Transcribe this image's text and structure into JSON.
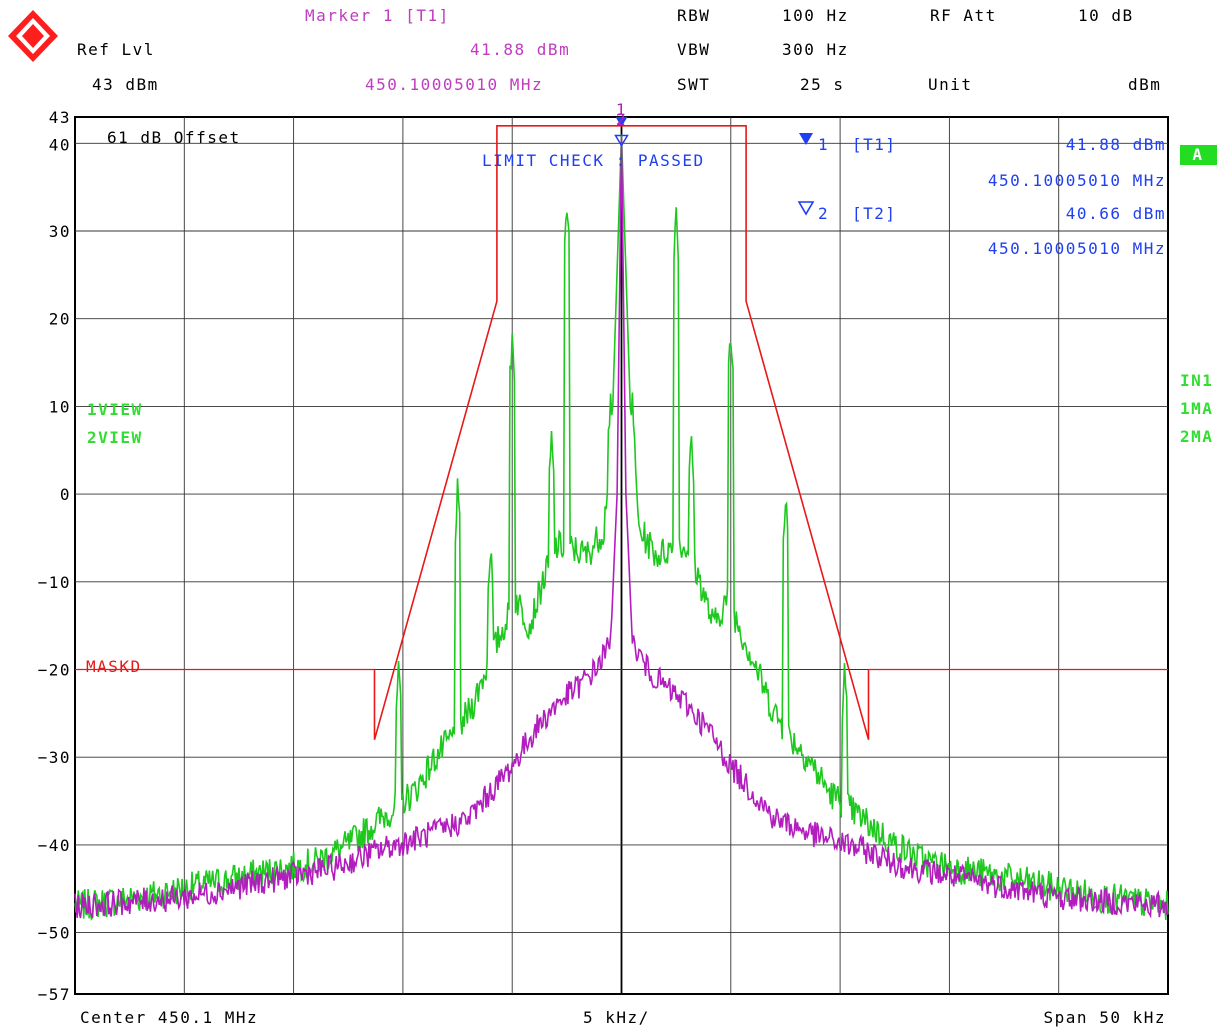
{
  "header": {
    "marker_title": "Marker 1 [T1]",
    "ref_lvl_label": "Ref Lvl",
    "ref_lvl_value": "43 dBm",
    "marker_level": "41.88 dBm",
    "marker_freq": "450.10005010 MHz",
    "rbw_label": "RBW",
    "rbw_value": "100 Hz",
    "vbw_label": "VBW",
    "vbw_value": "300 Hz",
    "swt_label": "SWT",
    "swt_value": "25 s",
    "rf_att_label": "RF Att",
    "rf_att_value": "10 dB",
    "unit_label": "Unit",
    "unit_value": "dBm"
  },
  "overlay": {
    "offset_text": "61 dB Offset",
    "limit_check": "LIMIT CHECK   : PASSED",
    "view1": "1VIEW",
    "view2": "2VIEW",
    "mask_label": "MASKD",
    "trace_badge": "A",
    "right_labels": [
      "IN1",
      "1MA",
      "2MA"
    ],
    "marker1_id": "1",
    "marker1_tag": "[T1]",
    "marker1_level": "41.88 dBm",
    "marker1_freq": "450.10005010 MHz",
    "marker2_id": "2",
    "marker2_tag": "[T2]",
    "marker2_level": "40.66 dBm",
    "marker2_freq": "450.10005010 MHz"
  },
  "footer": {
    "center": "Center 450.1 MHz",
    "per_div": "5 kHz/",
    "span": "Span 50 kHz"
  },
  "colors": {
    "trace1": "#1ec81e",
    "trace2": "#b21ebe",
    "mask": "#e81818",
    "marker_text": "#1f3ff0",
    "header_magenta": "#c03cc0",
    "view_green": "#33dd33",
    "grid": "#000000"
  },
  "chart_data": {
    "type": "line",
    "xlabel": "",
    "ylabel": "",
    "x_unit": "kHz offset from center",
    "xlim": [
      -25,
      25
    ],
    "ylim": [
      -57,
      43
    ],
    "yticks": [
      43,
      40,
      30,
      20,
      10,
      0,
      -10,
      -20,
      -30,
      -40,
      -50,
      -57
    ],
    "grid": true,
    "mask_line": {
      "name": "MASKD",
      "x": [
        -11.3,
        -11.3,
        -5.7,
        -5.7,
        5.7,
        5.7,
        11.3,
        11.3
      ],
      "y": [
        -20,
        -28,
        22,
        42,
        42,
        22,
        -28,
        -20
      ],
      "horizontal_level": -20
    },
    "series": [
      {
        "key": "1VIEW",
        "base": [
          [
            -25,
            -47
          ],
          [
            -22,
            -46
          ],
          [
            -19,
            -44.5
          ],
          [
            -16,
            -43
          ],
          [
            -14,
            -42
          ],
          [
            -12.5,
            -40
          ],
          [
            -11.5,
            -38
          ],
          [
            -10.5,
            -36
          ],
          [
            -9.5,
            -34
          ],
          [
            -8.5,
            -30
          ],
          [
            -7.5,
            -27
          ],
          [
            -6.8,
            -24
          ],
          [
            -6.2,
            -20
          ],
          [
            -5.2,
            -14
          ],
          [
            -4.8,
            -12
          ],
          [
            -4.2,
            -15
          ],
          [
            -3.6,
            -10
          ],
          [
            -3,
            -6
          ],
          [
            -2.4,
            -6
          ],
          [
            -1.6,
            -7
          ],
          [
            -0.8,
            -4
          ],
          [
            -0.4,
            10
          ],
          [
            0,
            41
          ],
          [
            0.4,
            10
          ],
          [
            0.8,
            -4
          ],
          [
            1.6,
            -7
          ],
          [
            2.4,
            -6
          ],
          [
            3,
            -6
          ],
          [
            3.6,
            -10
          ],
          [
            4.2,
            -15
          ],
          [
            4.8,
            -12
          ],
          [
            5.2,
            -14
          ],
          [
            6.2,
            -20
          ],
          [
            6.8,
            -24
          ],
          [
            7.5,
            -27
          ],
          [
            8.5,
            -30
          ],
          [
            9.5,
            -34
          ],
          [
            10.5,
            -36
          ],
          [
            11.5,
            -38
          ],
          [
            12.5,
            -40
          ],
          [
            14,
            -42
          ],
          [
            16,
            -43
          ],
          [
            19,
            -44.5
          ],
          [
            22,
            -46
          ],
          [
            25,
            -47
          ]
        ],
        "peaks": [
          [
            -10.2,
            -20.5
          ],
          [
            -7.5,
            0
          ],
          [
            -6.0,
            -6
          ],
          [
            -5.0,
            18
          ],
          [
            -3.2,
            6
          ],
          [
            -2.5,
            32.5
          ],
          [
            -0.5,
            11
          ],
          [
            0.5,
            11
          ],
          [
            2.5,
            32.5
          ],
          [
            3.2,
            6
          ],
          [
            5.0,
            18
          ],
          [
            7.5,
            0
          ],
          [
            10.2,
            -20.5
          ]
        ]
      },
      {
        "key": "MA",
        "base": [
          [
            -25,
            -47
          ],
          [
            -20,
            -46
          ],
          [
            -16,
            -44
          ],
          [
            -13,
            -42.5
          ],
          [
            -11,
            -40.5
          ],
          [
            -9,
            -39
          ],
          [
            -7,
            -37
          ],
          [
            -5,
            -31
          ],
          [
            -4,
            -27
          ],
          [
            -3,
            -24
          ],
          [
            -2,
            -22
          ],
          [
            -1.2,
            -20
          ],
          [
            -0.5,
            -17
          ],
          [
            -0.2,
            0
          ],
          [
            0,
            40.7
          ],
          [
            0.2,
            0
          ],
          [
            0.5,
            -17
          ],
          [
            1.2,
            -20
          ],
          [
            2,
            -22
          ],
          [
            3,
            -24
          ],
          [
            4,
            -27
          ],
          [
            5,
            -31
          ],
          [
            7,
            -37
          ],
          [
            9,
            -39
          ],
          [
            11,
            -40.5
          ],
          [
            13,
            -42.5
          ],
          [
            16,
            -44
          ],
          [
            20,
            -46
          ],
          [
            25,
            -47
          ]
        ],
        "peaks": []
      }
    ],
    "markers": [
      {
        "id": "1",
        "tag": "T1",
        "x": 0,
        "y": 41.88
      },
      {
        "id": "2",
        "tag": "T2",
        "x": 0,
        "y": 40.66
      }
    ]
  }
}
